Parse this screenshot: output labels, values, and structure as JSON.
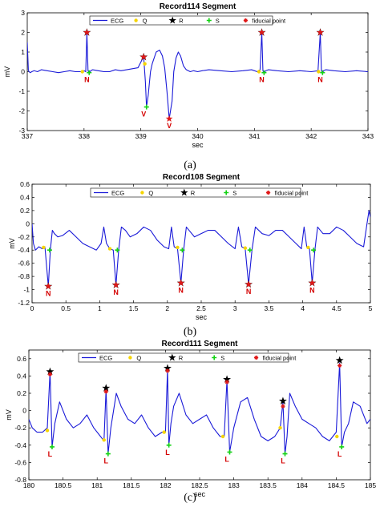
{
  "colors": {
    "ecg": "#1a1ad8",
    "q": "#f5d400",
    "r": "#000000",
    "s": "#14d214",
    "fiducial": "#e01818",
    "beat_label": "#d40000"
  },
  "chart_data": [
    {
      "type": "line",
      "caption": "(a)",
      "title": "Record114 Segment",
      "xlabel": "sec",
      "ylabel": "mV",
      "xlim": [
        337,
        343
      ],
      "ylim": [
        -3,
        3
      ],
      "xticks": [
        337,
        338,
        339,
        340,
        341,
        342,
        343
      ],
      "yticks": [
        -3,
        -2,
        -1,
        0,
        1,
        2,
        3
      ],
      "grid": false,
      "legend": {
        "placement": "top",
        "entries": [
          "ECG",
          "Q",
          "R",
          "S",
          "fiducial point"
        ]
      },
      "ecg": {
        "x": [
          337.0,
          337.02,
          337.05,
          337.08,
          337.12,
          337.18,
          337.25,
          337.35,
          337.45,
          337.55,
          337.65,
          337.75,
          337.85,
          337.95,
          338.0,
          338.03,
          338.05,
          338.07,
          338.09,
          338.12,
          338.15,
          338.25,
          338.35,
          338.45,
          338.55,
          338.65,
          338.75,
          338.85,
          338.95,
          339.02,
          339.05,
          339.08,
          339.1,
          339.13,
          339.17,
          339.2,
          339.27,
          339.33,
          339.38,
          339.42,
          339.46,
          339.5,
          339.55,
          339.58,
          339.62,
          339.66,
          339.7,
          339.75,
          339.8,
          339.87,
          339.93,
          340.0,
          340.08,
          340.2,
          340.4,
          340.6,
          340.8,
          340.95,
          341.05,
          341.1,
          341.13,
          341.15,
          341.17,
          341.2,
          341.25,
          341.4,
          341.6,
          341.8,
          342.0,
          342.12,
          342.16,
          342.18,
          342.2,
          342.22,
          342.26,
          342.4,
          342.6,
          342.8,
          343.0
        ],
        "y": [
          1.5,
          0.05,
          -0.05,
          0.0,
          0.05,
          0.0,
          0.1,
          0.05,
          0.0,
          -0.05,
          0.0,
          0.05,
          0.0,
          0.0,
          0.05,
          0.0,
          2.0,
          0.05,
          -0.05,
          0.05,
          0.1,
          0.05,
          0.0,
          0.0,
          0.1,
          0.05,
          0.1,
          0.15,
          0.2,
          0.6,
          0.75,
          -0.5,
          -1.8,
          -1.2,
          0.0,
          0.4,
          1.0,
          1.1,
          0.8,
          0.2,
          -1.0,
          -2.4,
          -1.5,
          0.0,
          0.7,
          1.0,
          0.8,
          0.3,
          0.1,
          0.0,
          0.05,
          0.0,
          0.05,
          0.1,
          0.05,
          0.0,
          0.05,
          0.1,
          0.0,
          0.1,
          2.0,
          0.05,
          -0.05,
          0.05,
          0.1,
          0.05,
          0.0,
          0.05,
          0.0,
          0.05,
          2.0,
          0.05,
          -0.05,
          0.05,
          0.1,
          0.05,
          0.0,
          0.05,
          0.0
        ]
      },
      "q": {
        "x": [
          337.97,
          339.07,
          341.08,
          342.13
        ],
        "y": [
          0.0,
          0.4,
          0.0,
          0.0
        ]
      },
      "r": {
        "x": [
          338.05,
          339.05,
          341.13,
          342.16
        ],
        "y": [
          2.0,
          0.75,
          2.0,
          2.0
        ]
      },
      "s": {
        "x": [
          338.09,
          339.1,
          341.17,
          342.2
        ],
        "y": [
          -0.05,
          -1.8,
          -0.05,
          -0.05
        ]
      },
      "fiducial": {
        "x": [
          338.05,
          339.05,
          341.13,
          342.16,
          339.5
        ],
        "y": [
          2.0,
          0.75,
          2.0,
          2.0,
          -2.4
        ]
      },
      "beat_labels": [
        {
          "x": 338.05,
          "text": "N"
        },
        {
          "x": 339.05,
          "text": "V"
        },
        {
          "x": 339.5,
          "text": "V"
        },
        {
          "x": 341.13,
          "text": "N"
        },
        {
          "x": 342.16,
          "text": "N"
        }
      ]
    },
    {
      "type": "line",
      "caption": "(b)",
      "title": "Record108 Segment",
      "xlabel": "sec",
      "ylabel": "mV",
      "xlim": [
        0,
        5
      ],
      "ylim": [
        -1.2,
        0.6
      ],
      "xticks": [
        0,
        0.5,
        1,
        1.5,
        2,
        2.5,
        3,
        3.5,
        4,
        4.5,
        5
      ],
      "yticks": [
        -1.2,
        -1,
        -0.8,
        -0.6,
        -0.4,
        -0.2,
        0,
        0.2,
        0.4,
        0.6
      ],
      "grid": false,
      "legend": {
        "placement": "top",
        "entries": [
          "ECG",
          "Q",
          "R",
          "S",
          "fiducial point"
        ]
      },
      "ecg": {
        "x": [
          0.0,
          0.02,
          0.05,
          0.1,
          0.15,
          0.19,
          0.24,
          0.27,
          0.3,
          0.33,
          0.38,
          0.45,
          0.55,
          0.65,
          0.75,
          0.85,
          0.95,
          1.02,
          1.06,
          1.1,
          1.15,
          1.2,
          1.24,
          1.28,
          1.32,
          1.38,
          1.45,
          1.55,
          1.65,
          1.75,
          1.85,
          1.95,
          2.02,
          2.06,
          2.1,
          2.15,
          2.2,
          2.24,
          2.28,
          2.32,
          2.4,
          2.5,
          2.6,
          2.7,
          2.8,
          2.9,
          3.0,
          3.05,
          3.1,
          3.15,
          3.2,
          3.25,
          3.3,
          3.4,
          3.5,
          3.6,
          3.7,
          3.8,
          3.9,
          3.98,
          4.02,
          4.06,
          4.1,
          4.14,
          4.18,
          4.22,
          4.3,
          4.4,
          4.5,
          4.6,
          4.7,
          4.8,
          4.9,
          4.95,
          4.98,
          5.0
        ],
        "y": [
          0.0,
          -0.3,
          -0.4,
          -0.35,
          -0.38,
          -0.35,
          -0.95,
          -0.4,
          -0.1,
          -0.15,
          -0.2,
          -0.18,
          -0.1,
          -0.2,
          -0.3,
          -0.35,
          -0.4,
          -0.3,
          -0.05,
          -0.3,
          -0.38,
          -0.4,
          -0.93,
          -0.4,
          -0.05,
          -0.1,
          -0.2,
          -0.15,
          -0.05,
          -0.1,
          -0.25,
          -0.35,
          -0.38,
          -0.05,
          -0.35,
          -0.38,
          -0.9,
          -0.4,
          -0.05,
          -0.1,
          -0.2,
          -0.15,
          -0.1,
          -0.1,
          -0.2,
          -0.3,
          -0.38,
          -0.05,
          -0.35,
          -0.38,
          -0.92,
          -0.4,
          -0.05,
          -0.15,
          -0.18,
          -0.1,
          -0.1,
          -0.2,
          -0.3,
          -0.38,
          -0.05,
          -0.35,
          -0.38,
          -0.9,
          -0.4,
          -0.05,
          -0.15,
          -0.15,
          -0.05,
          -0.1,
          -0.2,
          -0.3,
          -0.35,
          0.0,
          0.2,
          0.1
        ]
      },
      "q": {
        "x": [
          0.17,
          1.15,
          2.15,
          3.15,
          4.08
        ],
        "y": [
          -0.36,
          -0.38,
          -0.36,
          -0.37,
          -0.36
        ]
      },
      "r": {
        "x": [
          0.24,
          1.24,
          2.2,
          3.2,
          4.14
        ],
        "y": [
          -0.95,
          -0.93,
          -0.9,
          -0.92,
          -0.9
        ]
      },
      "s": {
        "x": [
          0.26,
          1.26,
          2.22,
          3.22,
          4.16
        ],
        "y": [
          -0.4,
          -0.4,
          -0.4,
          -0.4,
          -0.4
        ]
      },
      "fiducial": {
        "x": [
          0.24,
          1.24,
          2.2,
          3.2,
          4.14
        ],
        "y": [
          -0.95,
          -0.93,
          -0.9,
          -0.92,
          -0.9
        ]
      },
      "beat_labels": [
        {
          "x": 0.24,
          "text": "N"
        },
        {
          "x": 1.24,
          "text": "N"
        },
        {
          "x": 2.2,
          "text": "N"
        },
        {
          "x": 3.2,
          "text": "N"
        },
        {
          "x": 4.14,
          "text": "N"
        }
      ]
    },
    {
      "type": "line",
      "caption": "(c)",
      "title": "Record111 Segment",
      "xlabel": "sec",
      "ylabel": "mV",
      "xlim": [
        180,
        185
      ],
      "ylim": [
        -0.8,
        0.7
      ],
      "xticks": [
        180,
        180.5,
        181,
        181.5,
        182,
        182.5,
        183,
        183.5,
        184,
        184.5,
        185
      ],
      "yticks": [
        -0.8,
        -0.6,
        -0.4,
        -0.2,
        0,
        0.2,
        0.4,
        0.6
      ],
      "grid": false,
      "legend": {
        "placement": "top",
        "entries": [
          "ECG",
          "Q",
          "R",
          "S",
          "fiducial point"
        ]
      },
      "ecg": {
        "x": [
          180.0,
          180.05,
          180.12,
          180.2,
          180.27,
          180.31,
          180.34,
          180.38,
          180.45,
          180.55,
          180.65,
          180.75,
          180.85,
          180.95,
          181.05,
          181.1,
          181.13,
          181.16,
          181.2,
          181.28,
          181.35,
          181.45,
          181.55,
          181.65,
          181.75,
          181.85,
          181.95,
          182.0,
          182.03,
          182.05,
          182.08,
          182.12,
          182.2,
          182.3,
          182.4,
          182.5,
          182.6,
          182.7,
          182.8,
          182.86,
          182.9,
          182.94,
          183.0,
          183.1,
          183.2,
          183.3,
          183.4,
          183.5,
          183.6,
          183.68,
          183.72,
          183.75,
          183.78,
          183.82,
          183.9,
          184.0,
          184.1,
          184.2,
          184.3,
          184.4,
          184.5,
          184.55,
          184.58,
          184.62,
          184.68,
          184.75,
          184.85,
          184.95,
          185.0
        ],
        "y": [
          -0.1,
          -0.2,
          -0.25,
          -0.25,
          -0.2,
          0.45,
          -0.42,
          -0.15,
          0.1,
          -0.1,
          -0.2,
          -0.15,
          -0.05,
          -0.2,
          -0.3,
          -0.35,
          0.25,
          -0.5,
          -0.2,
          0.2,
          0.05,
          -0.1,
          -0.15,
          -0.05,
          -0.2,
          -0.3,
          -0.25,
          -0.25,
          0.48,
          -0.4,
          -0.15,
          0.05,
          0.2,
          -0.05,
          -0.15,
          -0.1,
          -0.05,
          -0.2,
          -0.3,
          -0.3,
          0.35,
          -0.48,
          -0.2,
          0.1,
          0.15,
          -0.1,
          -0.3,
          -0.35,
          -0.3,
          -0.2,
          0.1,
          -0.5,
          -0.3,
          0.2,
          0.05,
          -0.1,
          -0.15,
          -0.2,
          -0.3,
          -0.35,
          -0.25,
          0.55,
          -0.42,
          -0.25,
          -0.15,
          0.1,
          0.05,
          -0.15,
          -0.1
        ]
      },
      "q": {
        "x": [
          180.27,
          181.1,
          181.98,
          182.84,
          183.68,
          184.51
        ],
        "y": [
          -0.23,
          -0.34,
          -0.25,
          -0.3,
          -0.2,
          -0.3
        ]
      },
      "r": {
        "x": [
          180.31,
          181.13,
          182.03,
          182.9,
          183.72,
          184.55
        ],
        "y": [
          0.45,
          0.26,
          0.49,
          0.36,
          0.11,
          0.58
        ]
      },
      "s": {
        "x": [
          180.34,
          181.16,
          182.05,
          182.94,
          183.75,
          184.58
        ],
        "y": [
          -0.42,
          -0.5,
          -0.4,
          -0.48,
          -0.5,
          -0.42
        ]
      },
      "fiducial": {
        "x": [
          180.31,
          181.13,
          182.03,
          182.9,
          183.72,
          184.55
        ],
        "y": [
          0.42,
          0.22,
          0.46,
          0.33,
          0.05,
          0.52
        ]
      },
      "beat_labels": [
        {
          "x": 180.31,
          "text": "L"
        },
        {
          "x": 181.13,
          "text": "L"
        },
        {
          "x": 182.03,
          "text": "L"
        },
        {
          "x": 182.9,
          "text": "L"
        },
        {
          "x": 183.72,
          "text": "L"
        },
        {
          "x": 184.55,
          "text": "L"
        }
      ]
    }
  ]
}
